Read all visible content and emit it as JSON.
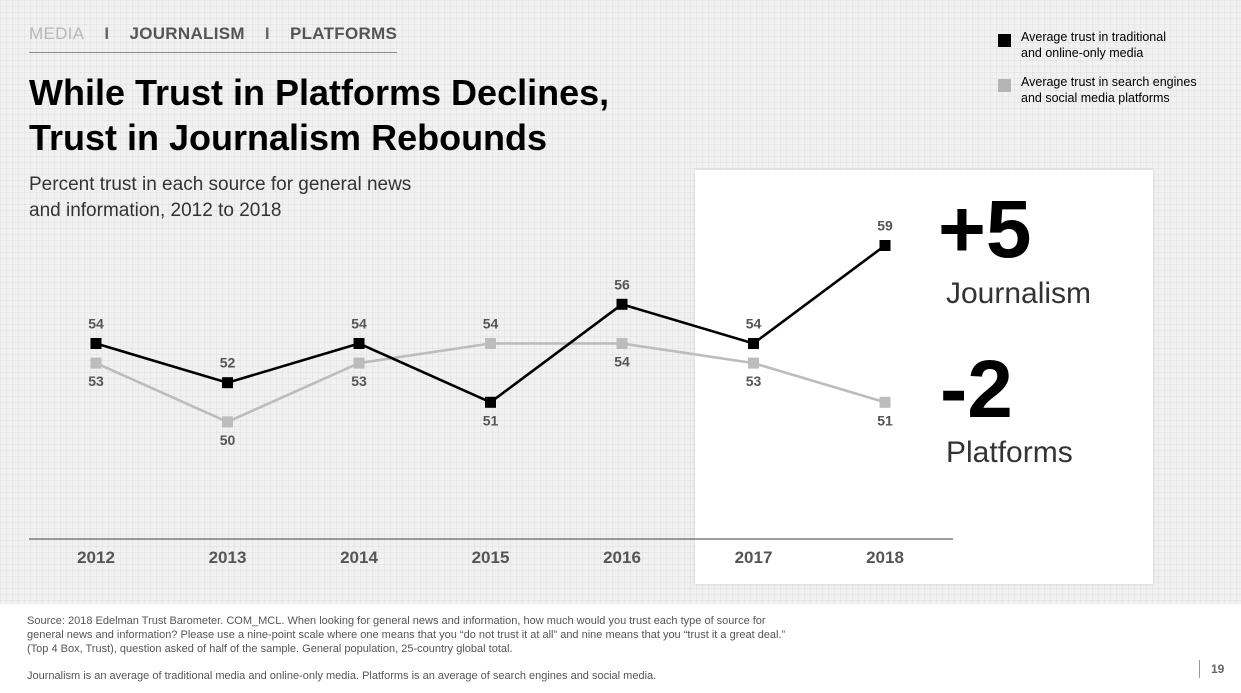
{
  "nav": {
    "media": "MEDIA",
    "sep1": "I",
    "journalism": "JOURNALISM",
    "sep2": "I",
    "platforms": "PLATFORMS"
  },
  "title_line1": "While Trust in Platforms Declines,",
  "title_line2": "Trust in Journalism Rebounds",
  "subtitle_line1": "Percent trust in each source for general news",
  "subtitle_line2": "and information, 2012 to 2018",
  "legend": {
    "items": [
      {
        "line1": "Average trust in traditional",
        "line2": "and online-only media",
        "color": "#000000"
      },
      {
        "line1": "Average trust in search engines",
        "line2": "and social media platforms",
        "color": "#b4b4b4"
      }
    ]
  },
  "highlights": {
    "journalism_change": "+5",
    "journalism_label": "Journalism",
    "platforms_change": "-2",
    "platforms_label": "Platforms"
  },
  "colors": {
    "journalism": "#000000",
    "platforms": "#bcbcbc",
    "label_gray": "#555555"
  },
  "chart_data": {
    "type": "line",
    "x": [
      "2012",
      "2013",
      "2014",
      "2015",
      "2016",
      "2017",
      "2018"
    ],
    "series": [
      {
        "key": "journalism",
        "values": [
          54,
          52,
          54,
          51,
          56,
          54,
          59
        ]
      },
      {
        "key": "platforms",
        "values": [
          53,
          50,
          53,
          54,
          54,
          53,
          51
        ]
      }
    ],
    "ylim": [
      48,
      61
    ],
    "grid": false,
    "legend_position": "top-right"
  },
  "footer": {
    "source_line1": "Source: 2018 Edelman Trust Barometer. COM_MCL. When looking for general news and information, how much would you trust each type of source for",
    "source_line2": "general news and information? Please use a nine-point scale where one means that you “do not trust it at all” and nine means that you “trust it a great deal.”",
    "source_line3": "(Top 4 Box, Trust), question asked of half of the sample. General population, 25-country global total.",
    "note": "Journalism is an average of traditional media and online-only media. Platforms is an average of search engines and social media.",
    "page_number": "19"
  }
}
